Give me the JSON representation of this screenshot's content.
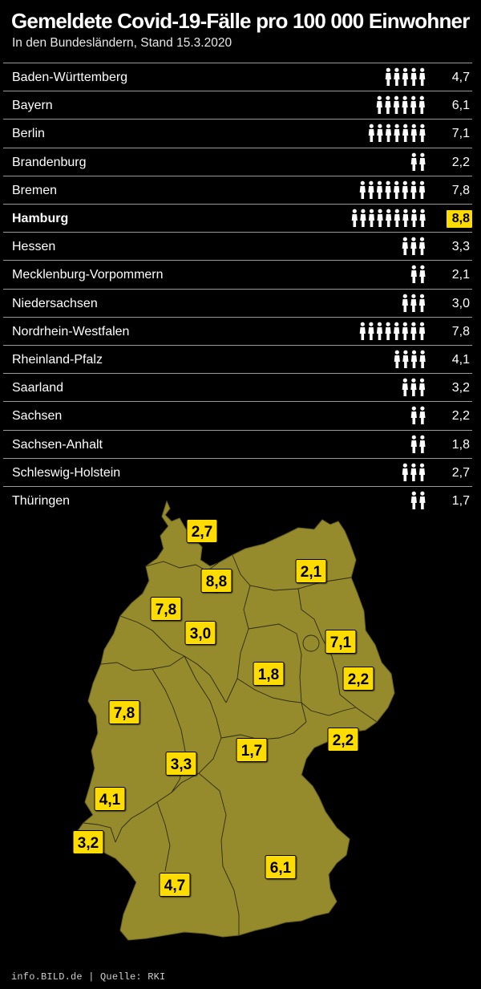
{
  "title": "Gemeldete Covid-19-Fälle pro 100 000 Einwohner",
  "subtitle": "In den Bundesländern, Stand 15.3.2020",
  "footer": "info.BILD.de | Quelle: RKI",
  "colors": {
    "background": "#000000",
    "highlight": "#ffdc00",
    "map_fill": "#958a2c",
    "text": "#ffffff"
  },
  "icon": "person-silhouette-icon",
  "chart_data": {
    "type": "table",
    "unit": "Fälle pro 100 000 Einwohner",
    "highlighted": "Hamburg",
    "rows": [
      {
        "state": "Baden-Württemberg",
        "value": 4.7,
        "label": "4,7",
        "map_label": "4,7"
      },
      {
        "state": "Bayern",
        "value": 6.1,
        "label": "6,1",
        "map_label": "6,1"
      },
      {
        "state": "Berlin",
        "value": 7.1,
        "label": "7,1",
        "map_label": "7,1"
      },
      {
        "state": "Brandenburg",
        "value": 2.2,
        "label": "2,2",
        "map_label": "2,2"
      },
      {
        "state": "Bremen",
        "value": 7.8,
        "label": "7,8",
        "map_label": "7,8"
      },
      {
        "state": "Hamburg",
        "value": 8.8,
        "label": "8,8",
        "map_label": "8,8"
      },
      {
        "state": "Hessen",
        "value": 3.3,
        "label": "3,3",
        "map_label": "3,3"
      },
      {
        "state": "Mecklenburg-Vorpommern",
        "value": 2.1,
        "label": "2,1",
        "map_label": "2,1"
      },
      {
        "state": "Niedersachsen",
        "value": 3.0,
        "label": "3,0",
        "map_label": "3,0"
      },
      {
        "state": "Nordrhein-Westfalen",
        "value": 7.8,
        "label": "7,8",
        "map_label": "7,8"
      },
      {
        "state": "Rheinland-Pfalz",
        "value": 4.1,
        "label": "4,1",
        "map_label": "4,1"
      },
      {
        "state": "Saarland",
        "value": 3.2,
        "label": "3,2",
        "map_label": "3,2"
      },
      {
        "state": "Sachsen",
        "value": 2.2,
        "label": "2,2",
        "map_label": "2,2"
      },
      {
        "state": "Sachsen-Anhalt",
        "value": 1.8,
        "label": "1,8",
        "map_label": "1,8"
      },
      {
        "state": "Schleswig-Holstein",
        "value": 2.7,
        "label": "2,7",
        "map_label": "2,7"
      },
      {
        "state": "Thüringen",
        "value": 1.7,
        "label": "1,7",
        "map_label": "1,7"
      }
    ]
  }
}
